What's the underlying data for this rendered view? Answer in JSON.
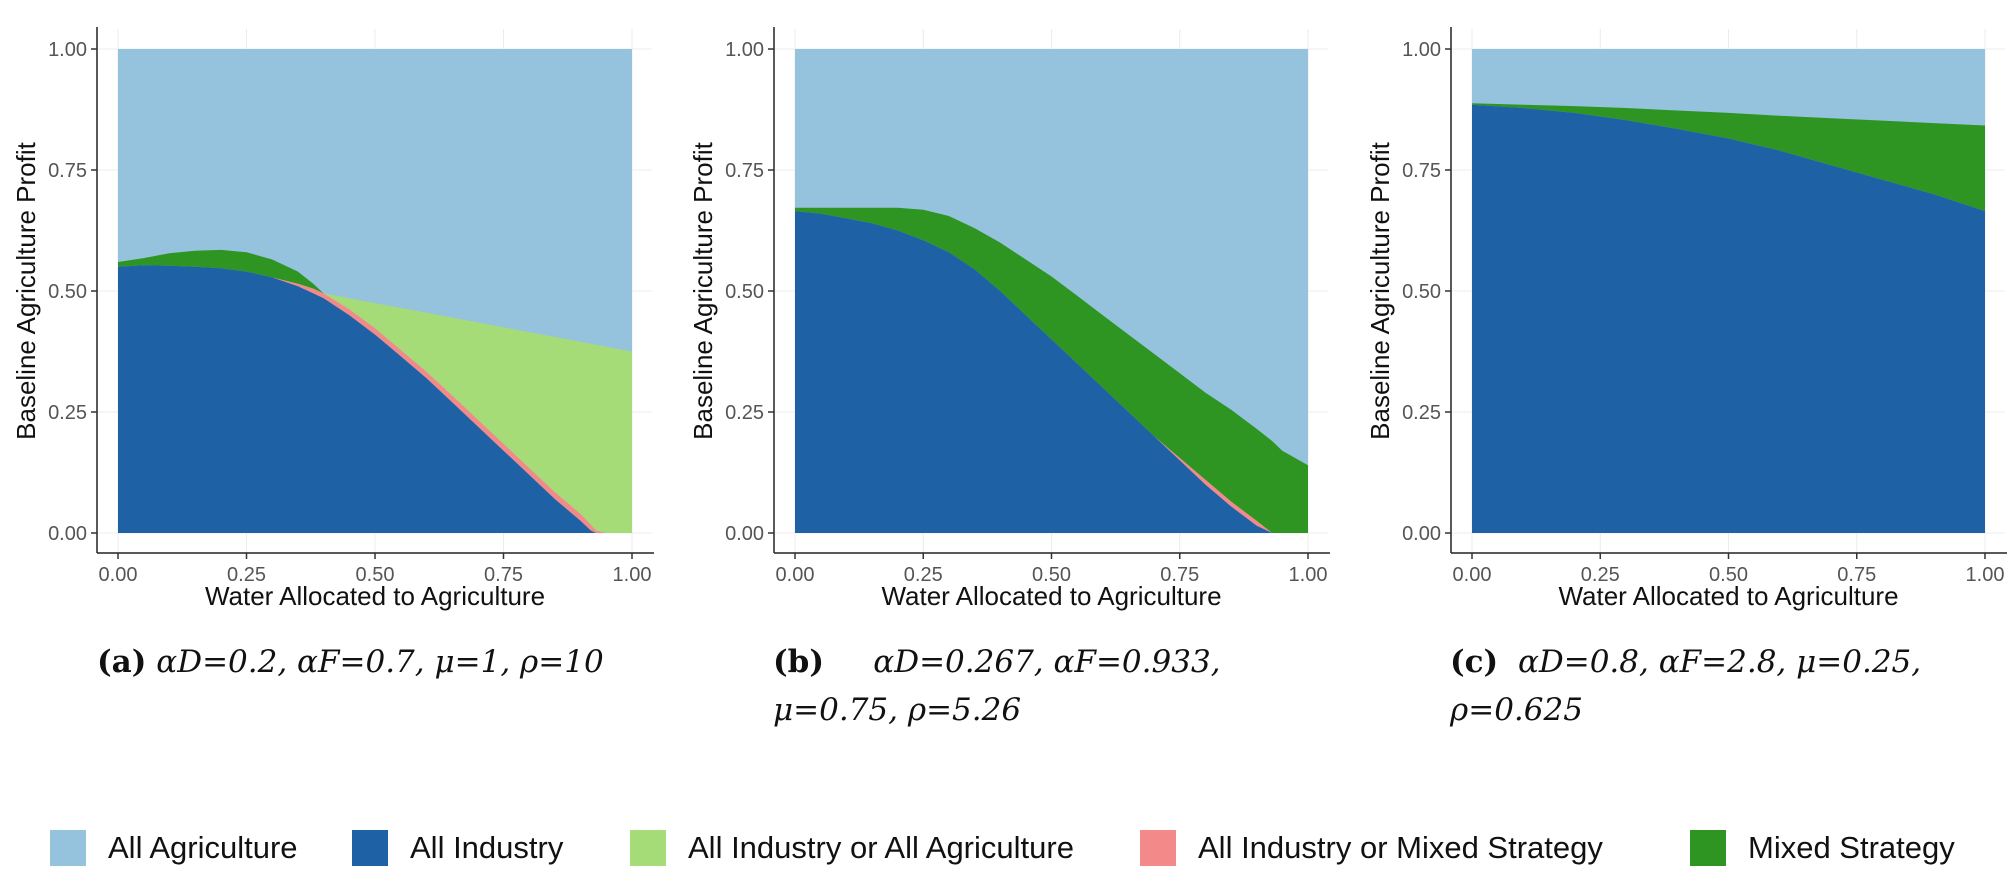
{
  "colors": {
    "all_agriculture": "#95c2dc",
    "all_industry": "#1f61a5",
    "industry_or_agriculture": "#a6dc78",
    "industry_or_mixed": "#f38a89",
    "mixed_strategy": "#2e9522"
  },
  "chart_data": [
    {
      "type": "area",
      "panel": "a",
      "xlabel": "Water Allocated to Agriculture",
      "ylabel": "Baseline Agriculture Profit",
      "xlim": [
        0,
        1
      ],
      "ylim": [
        0,
        1
      ],
      "xticks": [
        "0.00",
        "0.25",
        "0.50",
        "0.75",
        "1.00"
      ],
      "yticks": [
        "0.00",
        "0.25",
        "0.50",
        "0.75",
        "1.00"
      ],
      "boundaries": {
        "x": [
          0.0,
          0.05,
          0.1,
          0.15,
          0.2,
          0.25,
          0.3,
          0.35,
          0.38,
          0.4,
          0.45,
          0.5,
          0.55,
          0.6,
          0.65,
          0.7,
          0.75,
          0.8,
          0.85,
          0.9,
          0.92,
          0.93,
          0.95,
          1.0
        ],
        "industry_top": [
          0.55,
          0.553,
          0.552,
          0.55,
          0.547,
          0.54,
          0.528,
          0.51,
          0.495,
          0.485,
          0.45,
          0.41,
          0.365,
          0.32,
          0.27,
          0.22,
          0.17,
          0.12,
          0.07,
          0.025,
          0.005,
          0.0,
          0.0,
          0.0
        ],
        "pink_top": [
          0.55,
          0.553,
          0.552,
          0.55,
          0.547,
          0.54,
          0.528,
          0.515,
          0.505,
          0.495,
          0.462,
          0.423,
          0.378,
          0.333,
          0.284,
          0.234,
          0.184,
          0.134,
          0.084,
          0.039,
          0.017,
          0.005,
          0.0,
          0.0
        ],
        "mixed_top": [
          0.56,
          0.568,
          0.578,
          0.583,
          0.585,
          0.58,
          0.565,
          0.54,
          0.515,
          0.495,
          0.462,
          0.423,
          0.378,
          0.333,
          0.284,
          0.234,
          0.184,
          0.134,
          0.084,
          0.039,
          0.017,
          0.005,
          0.0,
          0.0
        ],
        "lightgreen_top": [
          0.56,
          0.568,
          0.578,
          0.583,
          0.585,
          0.58,
          0.565,
          0.54,
          0.515,
          0.495,
          0.485,
          0.475,
          0.465,
          0.455,
          0.445,
          0.435,
          0.425,
          0.415,
          0.405,
          0.395,
          0.391,
          0.389,
          0.385,
          0.375
        ]
      }
    },
    {
      "type": "area",
      "panel": "b",
      "xlabel": "Water Allocated to Agriculture",
      "ylabel": "Baseline Agriculture Profit",
      "xlim": [
        0,
        1
      ],
      "ylim": [
        0,
        1
      ],
      "xticks": [
        "0.00",
        "0.25",
        "0.50",
        "0.75",
        "1.00"
      ],
      "yticks": [
        "0.00",
        "0.25",
        "0.50",
        "0.75",
        "1.00"
      ],
      "boundaries": {
        "x": [
          0.0,
          0.05,
          0.1,
          0.15,
          0.2,
          0.25,
          0.3,
          0.35,
          0.4,
          0.45,
          0.5,
          0.55,
          0.6,
          0.65,
          0.7,
          0.75,
          0.8,
          0.85,
          0.9,
          0.93,
          0.95,
          1.0
        ],
        "industry_top": [
          0.665,
          0.66,
          0.65,
          0.64,
          0.625,
          0.605,
          0.58,
          0.545,
          0.5,
          0.45,
          0.4,
          0.35,
          0.3,
          0.25,
          0.2,
          0.15,
          0.1,
          0.055,
          0.015,
          0.0,
          0.0,
          0.0
        ],
        "pink_top": [
          0.665,
          0.66,
          0.65,
          0.64,
          0.625,
          0.605,
          0.58,
          0.545,
          0.5,
          0.45,
          0.4,
          0.35,
          0.3,
          0.25,
          0.2,
          0.155,
          0.11,
          0.065,
          0.025,
          0.0,
          0.0,
          0.0
        ],
        "mixed_top": [
          0.672,
          0.672,
          0.672,
          0.672,
          0.672,
          0.668,
          0.655,
          0.63,
          0.6,
          0.565,
          0.53,
          0.49,
          0.45,
          0.41,
          0.37,
          0.33,
          0.29,
          0.255,
          0.215,
          0.19,
          0.17,
          0.14
        ]
      }
    },
    {
      "type": "area",
      "panel": "c",
      "xlabel": "Water Allocated to Agriculture",
      "ylabel": "Baseline Agriculture Profit",
      "xlim": [
        0,
        1
      ],
      "ylim": [
        0,
        1
      ],
      "xticks": [
        "0.00",
        "0.25",
        "0.50",
        "0.75",
        "1.00"
      ],
      "yticks": [
        "0.00",
        "0.25",
        "0.50",
        "0.75",
        "1.00"
      ],
      "boundaries": {
        "x": [
          0.0,
          0.1,
          0.2,
          0.3,
          0.4,
          0.5,
          0.6,
          0.7,
          0.8,
          0.9,
          1.0
        ],
        "industry_top": [
          0.885,
          0.878,
          0.868,
          0.853,
          0.835,
          0.815,
          0.79,
          0.76,
          0.73,
          0.7,
          0.665
        ],
        "mixed_top": [
          0.888,
          0.885,
          0.882,
          0.878,
          0.873,
          0.868,
          0.862,
          0.857,
          0.852,
          0.847,
          0.842
        ]
      }
    }
  ],
  "captions": [
    {
      "label": "(a)",
      "line1": "αD=0.2, αF=0.7, μ=1, ρ=10",
      "line2": ""
    },
    {
      "label": "(b)",
      "line1": "αD=0.267,      αF=0.933,",
      "line2": "μ=0.75, ρ=5.26"
    },
    {
      "label": "(c)",
      "line1": "αD=0.8,   αF=2.8,   μ=0.25,",
      "line2": "ρ=0.625"
    }
  ],
  "legend": [
    {
      "label": "All Agriculture",
      "color": "#95c2dc"
    },
    {
      "label": "All Industry",
      "color": "#1f61a5"
    },
    {
      "label": "All Industry or All Agriculture",
      "color": "#a6dc78"
    },
    {
      "label": "All Industry or Mixed Strategy",
      "color": "#f38a89"
    },
    {
      "label": "Mixed Strategy",
      "color": "#2e9522"
    }
  ]
}
